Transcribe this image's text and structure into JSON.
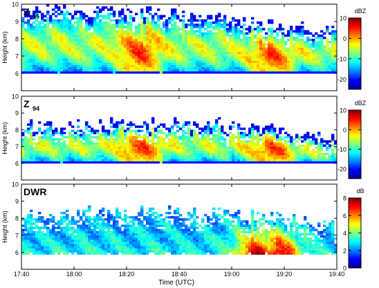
{
  "figure": {
    "xlabel": "Time (UTC)",
    "x_ticks": [
      "17:40",
      "18:00",
      "18:20",
      "18:40",
      "19:00",
      "19:20",
      "19:40"
    ]
  },
  "chart_data": [
    {
      "type": "heatmap",
      "panel_label": "Z",
      "panel_subscript": "35",
      "ylabel": "Height (km)",
      "ylim": [
        5,
        10
      ],
      "y_ticks": [
        "6",
        "7",
        "8",
        "9",
        "10"
      ],
      "xlim": [
        "17:40",
        "19:40"
      ],
      "colorbar": {
        "label": "dBZ",
        "ticks": [
          "10",
          "0",
          "-10",
          "-20"
        ],
        "range": [
          -25,
          10
        ]
      },
      "approx_structure": {
        "echo_base_km": 6.0,
        "echo_top_km": [
          9.6,
          9.6,
          9.6,
          9.4,
          9.2,
          8.6,
          8.6
        ],
        "peak_value": 8,
        "peak_near": [
          "18:25",
          "19:15"
        ]
      }
    },
    {
      "type": "heatmap",
      "panel_label": "Z",
      "panel_subscript": "94",
      "ylabel": "Height (km)",
      "ylim": [
        5,
        10
      ],
      "y_ticks": [
        "6",
        "7",
        "8",
        "9",
        "10"
      ],
      "xlim": [
        "17:40",
        "19:40"
      ],
      "colorbar": {
        "label": "dBZ",
        "ticks": [
          "10",
          "0",
          "-10",
          "-20"
        ],
        "range": [
          -25,
          10
        ]
      },
      "approx_structure": {
        "echo_base_km": 6.0,
        "echo_top_km": [
          8.2,
          8.3,
          8.4,
          8.4,
          8.3,
          8.0,
          7.5
        ],
        "peak_value": 3,
        "peak_near": [
          "18:25",
          "19:15"
        ]
      }
    },
    {
      "type": "heatmap",
      "panel_label": "DWR",
      "panel_subscript": "",
      "ylabel": "Height (km)",
      "ylim": [
        5,
        10
      ],
      "y_ticks": [
        "6",
        "7",
        "8",
        "9",
        "10"
      ],
      "xlim": [
        "17:40",
        "19:40"
      ],
      "colorbar": {
        "label": "dB",
        "ticks": [
          "8",
          "6",
          "4",
          "2",
          "0"
        ],
        "range": [
          0,
          8
        ]
      },
      "approx_structure": {
        "echo_base_km": 5.9,
        "echo_top_km": [
          8.2,
          8.3,
          8.4,
          8.4,
          8.3,
          8.0,
          7.5
        ],
        "peak_value": 7,
        "peak_near": [
          "19:10",
          "19:18"
        ]
      }
    }
  ]
}
